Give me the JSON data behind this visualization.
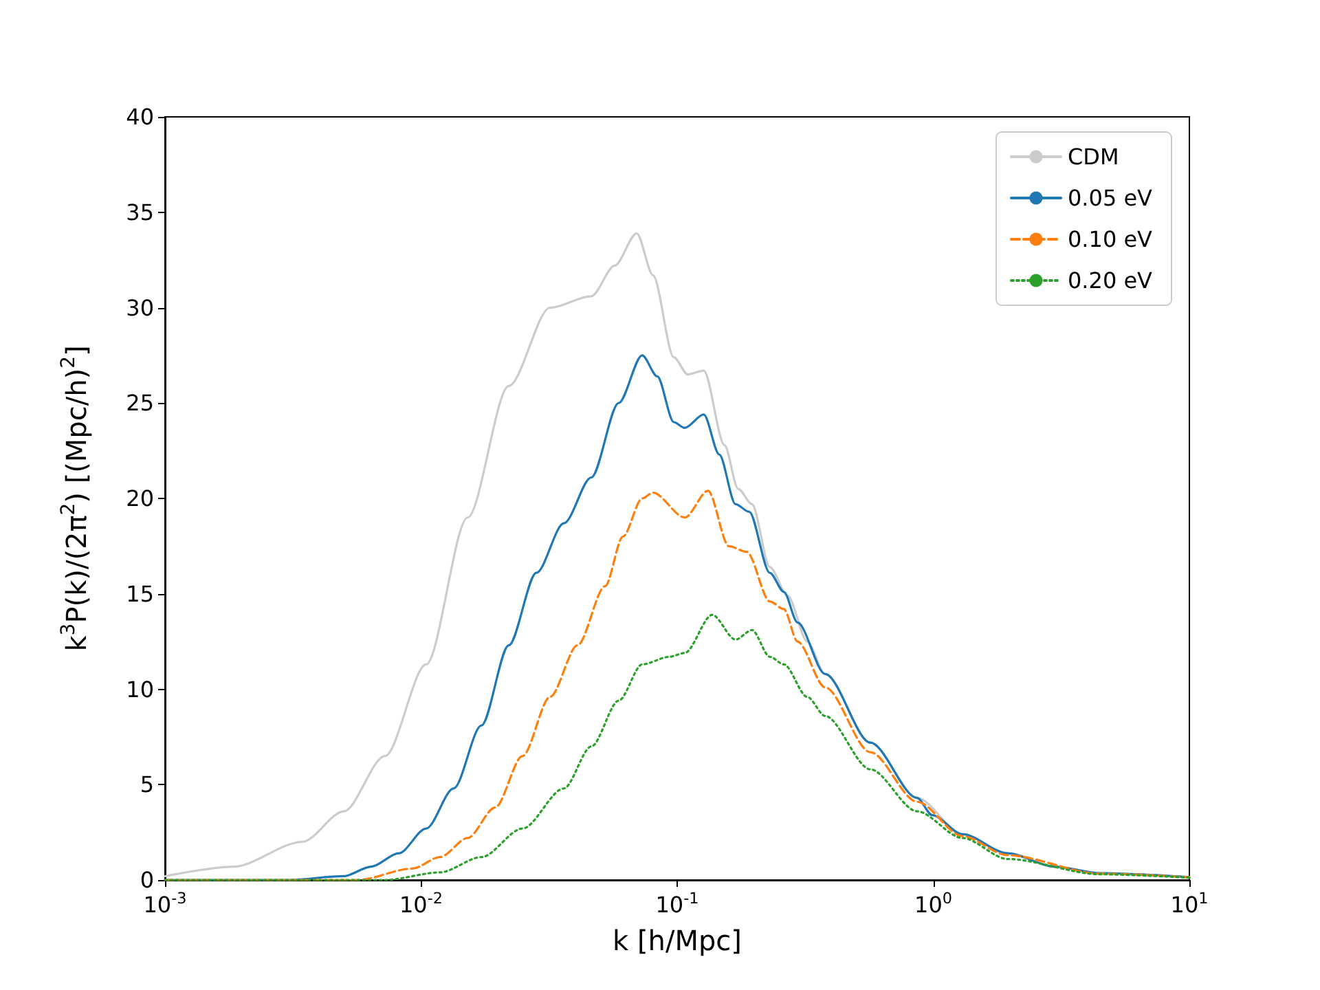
{
  "chart_data": {
    "type": "line",
    "xlabel": "k [h/Mpc]",
    "ylabel": "k$^{3}$P(k)/(2π$^{2}$) [(Mpc/h)$^{2}$]",
    "log": "x",
    "grid": false,
    "legend": "top right",
    "marker": "none",
    "xlim": [
      0.001,
      10
    ],
    "xticks": [
      {
        "value": 0.001,
        "label": "10$^{-3}$"
      },
      {
        "value": 0.01,
        "label": "10$^{-2}$"
      },
      {
        "value": 0.1,
        "label": "10$^{-1}$"
      },
      {
        "value": 1,
        "label": "10$^{0}$"
      },
      {
        "value": 10,
        "label": "10$^{1}$"
      }
    ],
    "ylim": [
      0,
      40
    ],
    "yticks": [
      0,
      5,
      10,
      15,
      20,
      25,
      30,
      35,
      40
    ],
    "series": [
      {
        "name": "CDM",
        "color": "#cccccc",
        "line_style": "solid",
        "x": [
          0.001,
          0.00185,
          0.00344,
          0.00499,
          0.00723,
          0.01047,
          0.0152,
          0.022,
          0.0319,
          0.0462,
          0.057,
          0.0695,
          0.0805,
          0.097,
          0.11,
          0.127,
          0.153,
          0.173,
          0.196,
          0.23,
          0.27,
          0.322,
          0.378,
          0.568,
          0.865,
          1.3,
          1.95,
          2.98,
          4.48,
          10
        ],
        "values": [
          0.2,
          0.7,
          2.0,
          3.6,
          6.5,
          11.3,
          19.0,
          25.9,
          30.0,
          30.6,
          32.2,
          33.9,
          31.7,
          27.4,
          26.5,
          26.7,
          22.8,
          20.5,
          19.7,
          16.4,
          14.9,
          12.5,
          10.8,
          7.2,
          4.3,
          2.4,
          1.4,
          0.7,
          0.36,
          0.15
        ]
      },
      {
        "name": "0.05 eV",
        "color": "#1f77b4",
        "line_style": "solid",
        "x": [
          0.001,
          0.003,
          0.00499,
          0.00638,
          0.00818,
          0.01047,
          0.0134,
          0.0172,
          0.022,
          0.0282,
          0.0361,
          0.0462,
          0.0591,
          0.073,
          0.0836,
          0.097,
          0.107,
          0.127,
          0.146,
          0.169,
          0.191,
          0.23,
          0.261,
          0.295,
          0.378,
          0.568,
          0.865,
          0.99,
          1.3,
          1.95,
          2.98,
          4.48,
          10
        ],
        "values": [
          0,
          0,
          0.2,
          0.7,
          1.4,
          2.7,
          4.8,
          8.1,
          12.3,
          16.1,
          18.7,
          21.1,
          25.0,
          27.5,
          26.4,
          24.0,
          23.7,
          24.4,
          22.3,
          19.7,
          19.3,
          16.1,
          15.1,
          13.5,
          10.8,
          7.2,
          4.3,
          3.4,
          2.4,
          1.4,
          0.7,
          0.36,
          0.15
        ]
      },
      {
        "name": "0.10 eV",
        "color": "#ff7f0e",
        "line_style": "dashed",
        "x": [
          0.001,
          0.00565,
          0.00925,
          0.01185,
          0.0152,
          0.01946,
          0.0249,
          0.0319,
          0.0408,
          0.0523,
          0.0614,
          0.073,
          0.0805,
          0.107,
          0.132,
          0.159,
          0.187,
          0.23,
          0.261,
          0.295,
          0.378,
          0.568,
          0.865,
          1.3,
          1.95,
          4.48,
          10
        ],
        "values": [
          0,
          0,
          0.6,
          1.2,
          2.2,
          3.8,
          6.5,
          9.6,
          12.3,
          15.4,
          18.0,
          20.0,
          20.3,
          19.0,
          20.4,
          17.5,
          17.2,
          14.6,
          14.2,
          12.5,
          10.1,
          6.7,
          4.1,
          2.3,
          1.3,
          0.33,
          0.14
        ]
      },
      {
        "name": "0.20 eV",
        "color": "#2ca02c",
        "line_style": "dotted",
        "x": [
          0.001,
          0.00723,
          0.01185,
          0.0172,
          0.0249,
          0.0361,
          0.0462,
          0.0591,
          0.073,
          0.0933,
          0.107,
          0.137,
          0.169,
          0.196,
          0.23,
          0.261,
          0.322,
          0.378,
          0.568,
          0.865,
          1.3,
          1.95,
          4.48,
          10
        ],
        "values": [
          0,
          0,
          0.4,
          1.2,
          2.7,
          4.8,
          7.0,
          9.4,
          11.3,
          11.7,
          11.9,
          13.9,
          12.6,
          13.1,
          11.7,
          11.3,
          9.6,
          8.6,
          5.8,
          3.6,
          2.2,
          1.1,
          0.3,
          0.12
        ]
      }
    ]
  }
}
